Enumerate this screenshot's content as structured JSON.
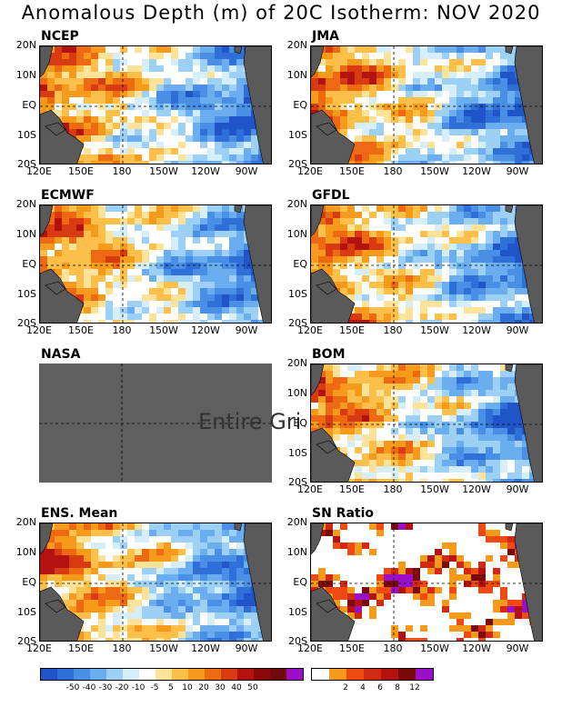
{
  "title": "Anomalous Depth (m) of 20C Isotherm: NOV 2020",
  "y_ticks": [
    "20N",
    "10N",
    "EQ",
    "10S",
    "20S"
  ],
  "x_ticks": [
    "120E",
    "150E",
    "180",
    "150W",
    "120W",
    "90W"
  ],
  "panels": [
    {
      "id": "ncep",
      "title": "NCEP",
      "type": "anomaly"
    },
    {
      "id": "jma",
      "title": "JMA",
      "type": "anomaly"
    },
    {
      "id": "ecmwf",
      "title": "ECMWF",
      "type": "anomaly"
    },
    {
      "id": "gfdl",
      "title": "GFDL",
      "type": "anomaly"
    },
    {
      "id": "nasa",
      "title": "NASA",
      "type": "empty",
      "message": "Entire Gri"
    },
    {
      "id": "bom",
      "title": "BOM",
      "type": "anomaly"
    },
    {
      "id": "ens",
      "title": "ENS. Mean",
      "type": "anomaly"
    },
    {
      "id": "sn",
      "title": "SN Ratio",
      "type": "snratio"
    }
  ],
  "anomaly_colorbar": {
    "colors": [
      "#1f55c8",
      "#2f6fd8",
      "#4a8fe6",
      "#6aaef0",
      "#9dd0f5",
      "#d6eefa",
      "#ffffff",
      "#fde39a",
      "#fbbf4a",
      "#f59a1a",
      "#ee6a12",
      "#d83a12",
      "#b4120f",
      "#8a0a0a",
      "#6f0b0b",
      "#9b0fc8"
    ],
    "labels": [
      "-50",
      "-40",
      "-30",
      "-20",
      "-10",
      "-5",
      "5",
      "10",
      "20",
      "30",
      "40",
      "50"
    ]
  },
  "sn_colorbar": {
    "colors": [
      "#ffffff",
      "#f59a1a",
      "#ee4a12",
      "#d22a12",
      "#b4120f",
      "#7a0a0a",
      "#9b0fc8"
    ],
    "labels": [
      "2",
      "4",
      "6",
      "8",
      "12"
    ]
  },
  "colors": {
    "land": "#5a5a5a",
    "nasa_fill": "#5f5f5f"
  }
}
